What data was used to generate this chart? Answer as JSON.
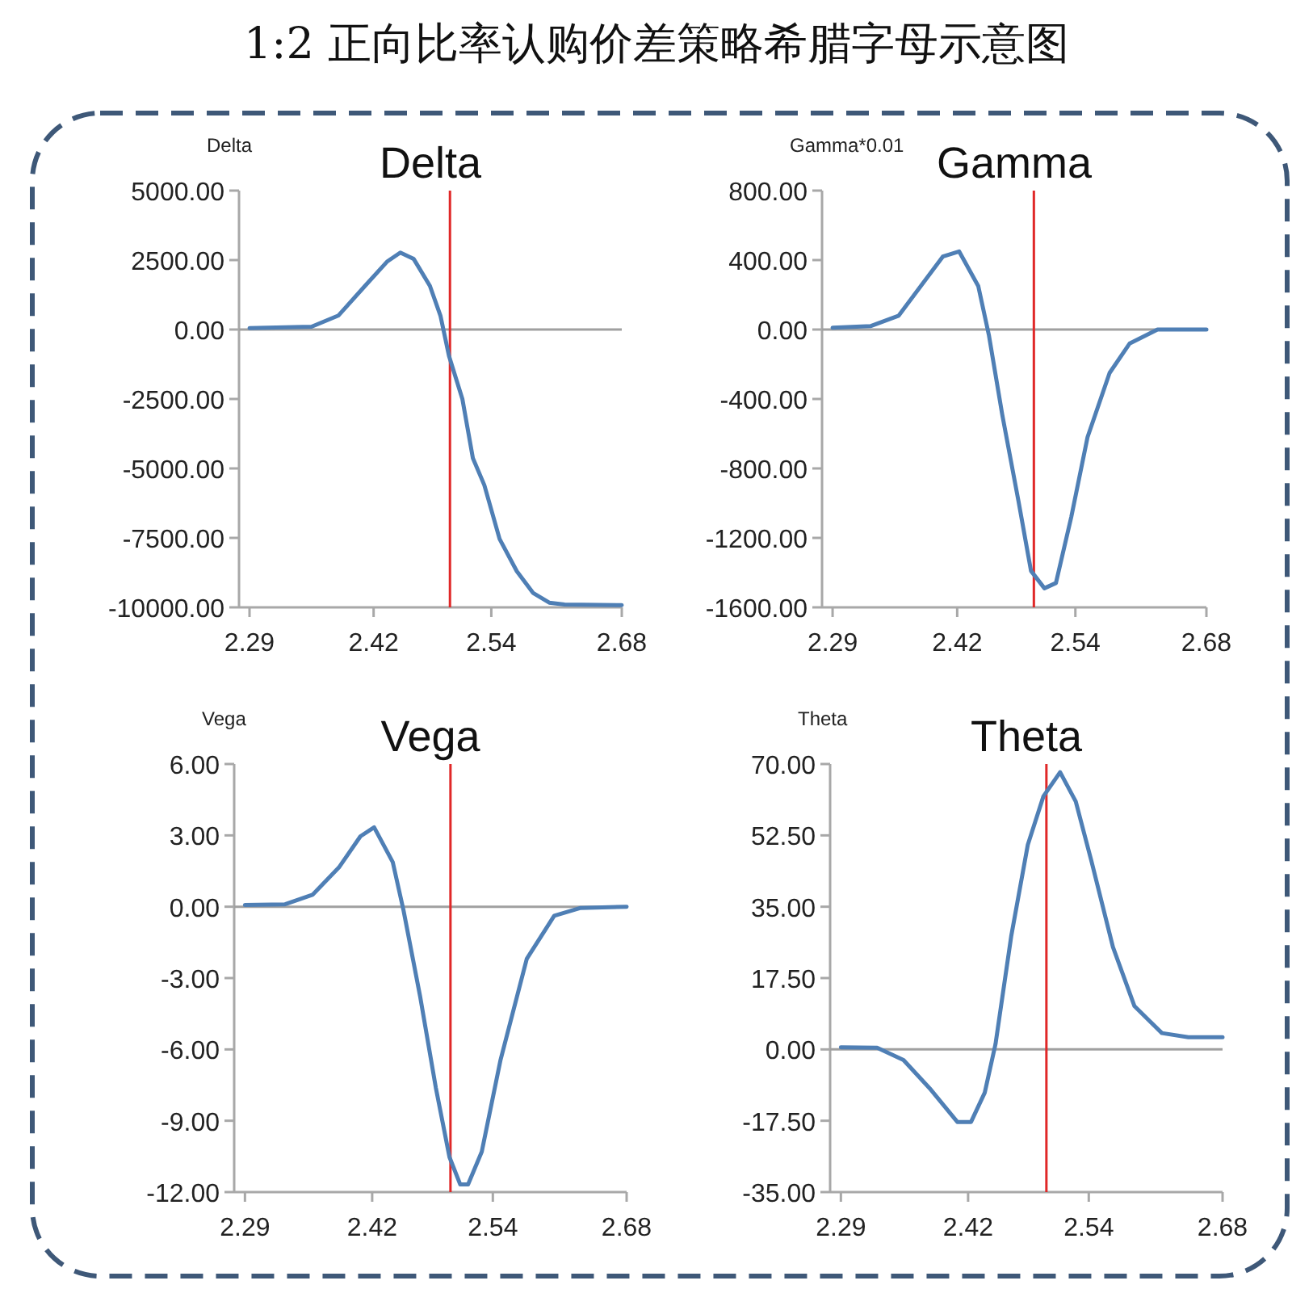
{
  "chart_data": [
    {
      "type": "other",
      "title": "1:2 正向比率认购价差策略希腊字母示意图"
    },
    {
      "type": "line",
      "title": "Delta",
      "ylabel": "Delta",
      "xlim": [
        2.279,
        2.68
      ],
      "ylim": [
        -10000,
        5000
      ],
      "xticks": [
        {
          "value": 2.29,
          "label": "2.29"
        },
        {
          "value": 2.42,
          "label": "2.42"
        },
        {
          "value": 2.5433,
          "label": "2.54"
        },
        {
          "value": 2.68,
          "label": "2.68"
        }
      ],
      "yticks": [
        {
          "value": 5000,
          "label": "5000.00"
        },
        {
          "value": 2500,
          "label": "2500.00"
        },
        {
          "value": 0,
          "label": "0.00"
        },
        {
          "value": -2500,
          "label": "-2500.00"
        },
        {
          "value": -5000,
          "label": "-5000.00"
        },
        {
          "value": -7500,
          "label": "-7500.00"
        },
        {
          "value": -10000,
          "label": "-10000.00"
        }
      ],
      "ref_lines": [
        {
          "axis": "y",
          "value": 0,
          "color": "#a0a0a0"
        },
        {
          "axis": "x",
          "value": 2.5,
          "color": "#e02828"
        }
      ],
      "series": [
        {
          "color": "#4f7fb5",
          "x": [
            2.29,
            2.355,
            2.383,
            2.411,
            2.434,
            2.448,
            2.462,
            2.479,
            2.49,
            2.499,
            2.513,
            2.524,
            2.536,
            2.552,
            2.57,
            2.587,
            2.604,
            2.62,
            2.68
          ],
          "values": [
            50,
            100,
            500,
            1570,
            2440,
            2770,
            2540,
            1570,
            500,
            -950,
            -2500,
            -4630,
            -5600,
            -7540,
            -8700,
            -9480,
            -9830,
            -9900,
            -9920
          ]
        }
      ]
    },
    {
      "type": "line",
      "title": "Gamma",
      "ylabel": "Gamma*0.01",
      "xlim": [
        2.279,
        2.68
      ],
      "ylim": [
        -1600,
        800
      ],
      "xticks": [
        {
          "value": 2.29,
          "label": "2.29"
        },
        {
          "value": 2.42,
          "label": "2.42"
        },
        {
          "value": 2.5433,
          "label": "2.54"
        },
        {
          "value": 2.68,
          "label": "2.68"
        }
      ],
      "yticks": [
        {
          "value": 800,
          "label": "800.00"
        },
        {
          "value": 400,
          "label": "400.00"
        },
        {
          "value": 0,
          "label": "0.00"
        },
        {
          "value": -400,
          "label": "-400.00"
        },
        {
          "value": -800,
          "label": "-800.00"
        },
        {
          "value": -1200,
          "label": "-1200.00"
        },
        {
          "value": -1600,
          "label": "-1600.00"
        }
      ],
      "ref_lines": [
        {
          "axis": "y",
          "value": 0,
          "color": "#a0a0a0"
        },
        {
          "axis": "x",
          "value": 2.5,
          "color": "#e02828"
        }
      ],
      "series": [
        {
          "color": "#4f7fb5",
          "x": [
            2.29,
            2.33,
            2.359,
            2.382,
            2.405,
            2.422,
            2.442,
            2.453,
            2.467,
            2.484,
            2.497,
            2.511,
            2.523,
            2.539,
            2.556,
            2.579,
            2.6,
            2.629,
            2.68
          ],
          "values": [
            10,
            20,
            80,
            250,
            420,
            450,
            250,
            -30,
            -490,
            -990,
            -1390,
            -1490,
            -1460,
            -1080,
            -620,
            -250,
            -80,
            0,
            0
          ]
        }
      ]
    },
    {
      "type": "line",
      "title": "Vega",
      "ylabel": "Vega",
      "xlim": [
        2.279,
        2.68
      ],
      "ylim": [
        -12,
        6
      ],
      "xticks": [
        {
          "value": 2.29,
          "label": "2.29"
        },
        {
          "value": 2.42,
          "label": "2.42"
        },
        {
          "value": 2.5433,
          "label": "2.54"
        },
        {
          "value": 2.68,
          "label": "2.68"
        }
      ],
      "yticks": [
        {
          "value": 6,
          "label": "6.00"
        },
        {
          "value": 3,
          "label": "3.00"
        },
        {
          "value": 0,
          "label": "0.00"
        },
        {
          "value": -3,
          "label": "-3.00"
        },
        {
          "value": -6,
          "label": "-6.00"
        },
        {
          "value": -9,
          "label": "-9.00"
        },
        {
          "value": -12,
          "label": "-12.00"
        }
      ],
      "ref_lines": [
        {
          "axis": "y",
          "value": 0,
          "color": "#a0a0a0"
        },
        {
          "axis": "x",
          "value": 2.5,
          "color": "#e02828"
        }
      ],
      "series": [
        {
          "color": "#4f7fb5",
          "x": [
            2.29,
            2.331,
            2.359,
            2.386,
            2.408,
            2.422,
            2.441,
            2.452,
            2.469,
            2.485,
            2.499,
            2.51,
            2.518,
            2.532,
            2.551,
            2.578,
            2.606,
            2.633,
            2.68
          ],
          "values": [
            0.07,
            0.1,
            0.5,
            1.65,
            2.96,
            3.34,
            1.88,
            -0.15,
            -3.77,
            -7.6,
            -10.53,
            -11.68,
            -11.68,
            -10.3,
            -6.47,
            -2.19,
            -0.38,
            -0.05,
            0
          ]
        }
      ]
    },
    {
      "type": "line",
      "title": "Theta",
      "ylabel": "Theta",
      "xlim": [
        2.279,
        2.68
      ],
      "ylim": [
        -35,
        70
      ],
      "xticks": [
        {
          "value": 2.29,
          "label": "2.29"
        },
        {
          "value": 2.42,
          "label": "2.42"
        },
        {
          "value": 2.5433,
          "label": "2.54"
        },
        {
          "value": 2.68,
          "label": "2.68"
        }
      ],
      "yticks": [
        {
          "value": 70,
          "label": "70.00"
        },
        {
          "value": 52.5,
          "label": "52.50"
        },
        {
          "value": 35,
          "label": "35.00"
        },
        {
          "value": 17.5,
          "label": "17.50"
        },
        {
          "value": 0,
          "label": "0.00"
        },
        {
          "value": -17.5,
          "label": "-17.50"
        },
        {
          "value": -35,
          "label": "-35.00"
        }
      ],
      "ref_lines": [
        {
          "axis": "y",
          "value": 0,
          "color": "#a0a0a0"
        },
        {
          "axis": "x",
          "value": 2.5,
          "color": "#e02828"
        }
      ],
      "series": [
        {
          "color": "#4f7fb5",
          "x": [
            2.29,
            2.327,
            2.354,
            2.382,
            2.409,
            2.423,
            2.437,
            2.448,
            2.464,
            2.481,
            2.497,
            2.514,
            2.53,
            2.546,
            2.568,
            2.59,
            2.618,
            2.645,
            2.68
          ],
          "values": [
            0.5,
            0.4,
            -2.6,
            -9.9,
            -17.8,
            -17.8,
            -10.6,
            1.3,
            27.7,
            50.2,
            62.1,
            68,
            60.8,
            46.2,
            25.1,
            10.6,
            4,
            3,
            3
          ]
        }
      ]
    }
  ]
}
